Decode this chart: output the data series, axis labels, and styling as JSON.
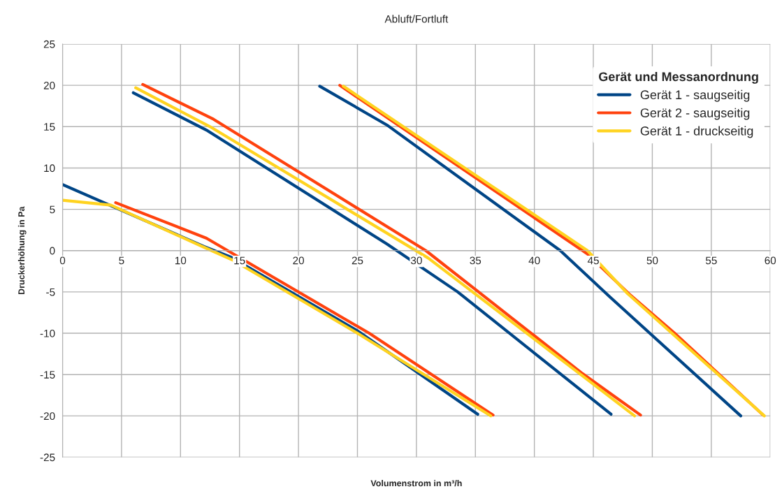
{
  "chart_data": {
    "type": "line",
    "title": "Abluft/Fortluft",
    "xlabel": "Volumenstrom in m³/h",
    "ylabel": "Druckerhöhung in Pa",
    "legend_title": "Gerät und Messanordnung",
    "series": [
      {
        "name": "Gerät 1 - saugseitig",
        "color": "#004586",
        "x": [
          0,
          12,
          14.3,
          25,
          35.2,
          null,
          6,
          12.3,
          27.5,
          33.5,
          46.5,
          null,
          21.8,
          27.5,
          42.2,
          46.4,
          57.5
        ],
        "values": [
          8,
          0.5,
          -0.8,
          -9.7,
          -19.8,
          null,
          19.1,
          14.5,
          0.8,
          -5,
          -19.8,
          null,
          19.9,
          15.2,
          0,
          -5.6,
          -20
        ]
      },
      {
        "name": "Gerät 2 - saugseitig",
        "color": "#ff420e",
        "x": [
          4.5,
          12.2,
          26,
          36.5,
          null,
          6.8,
          12.8,
          30.8,
          35.1,
          44.1,
          49,
          null,
          23.5,
          44.5,
          48,
          51.9,
          59.4
        ],
        "values": [
          5.8,
          1.5,
          -10,
          -19.9,
          null,
          20.1,
          15.9,
          0,
          -4.8,
          -14.9,
          -19.9,
          null,
          20,
          -0.4,
          -5.2,
          -10,
          -19.9
        ]
      },
      {
        "name": "Gerät 1 - druckseitig",
        "color": "#ffd320",
        "x": [
          0,
          4.1,
          12,
          14.5,
          25,
          36.3,
          null,
          6.2,
          12.5,
          31,
          44.3,
          48.5,
          null,
          23.8,
          44.5,
          47.9,
          59.5
        ],
        "values": [
          6.1,
          5.5,
          0.4,
          -1.2,
          -10,
          -20,
          null,
          19.7,
          15,
          -0.9,
          -15.4,
          -20,
          null,
          19.9,
          0,
          -5.2,
          -20
        ]
      }
    ],
    "xlim": [
      0,
      60
    ],
    "xticks": [
      0,
      5,
      10,
      15,
      20,
      25,
      30,
      35,
      40,
      45,
      50,
      55,
      60
    ],
    "ylim": [
      -25,
      25
    ],
    "yticks": [
      -25,
      -20,
      -15,
      -10,
      -5,
      0,
      5,
      10,
      15,
      20,
      25
    ],
    "grid": true,
    "legend": "top right"
  }
}
